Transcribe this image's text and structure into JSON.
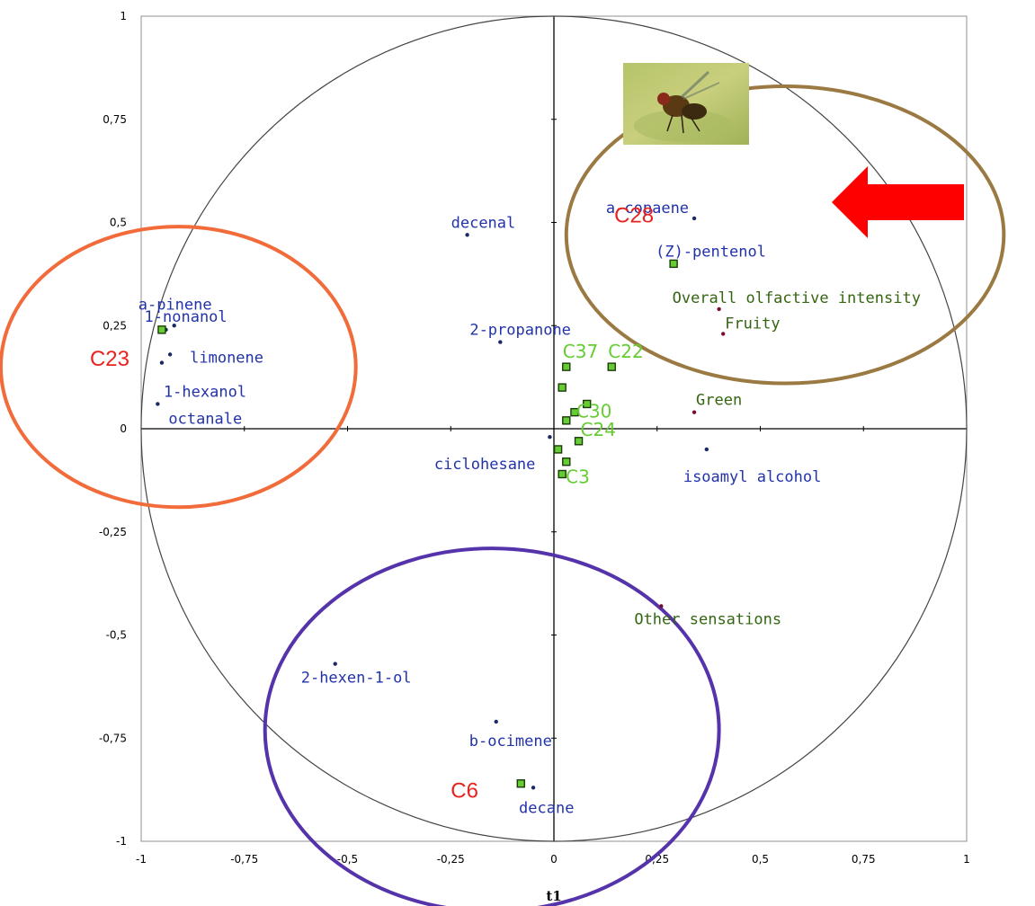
{
  "chart_data": {
    "type": "scatter",
    "xlabel": "t1",
    "xlim": [
      -1,
      1
    ],
    "ylim": [
      -1,
      1
    ],
    "x_ticks": [
      "-1",
      "-0,75",
      "-0,5",
      "-0,25",
      "0",
      "0,25",
      "0,5",
      "0,75",
      "1"
    ],
    "y_ticks": [
      "1",
      "0,75",
      "0,5",
      "0,25",
      "0",
      "-0,25",
      "-0,5",
      "-0,75",
      "-1"
    ],
    "correlation_circle": true,
    "variables_volatile": [
      {
        "name": "a-copaene",
        "x": 0.34,
        "y": 0.51
      },
      {
        "name": "(Z)-pentenol",
        "x": 0.29,
        "y": 0.4
      },
      {
        "name": "decenal",
        "x": -0.21,
        "y": 0.47
      },
      {
        "name": "2-propanone",
        "x": -0.13,
        "y": 0.21
      },
      {
        "name": "a-pinene",
        "x": -0.92,
        "y": 0.25
      },
      {
        "name": "1-nonanol",
        "x": -0.94,
        "y": 0.24
      },
      {
        "name": "limonene",
        "x": -0.93,
        "y": 0.18
      },
      {
        "name": "1-hexanol",
        "x": -0.95,
        "y": 0.16
      },
      {
        "name": "octanale",
        "x": -0.96,
        "y": 0.06
      },
      {
        "name": "ciclohesane",
        "x": -0.01,
        "y": -0.02
      },
      {
        "name": "isoamyl alcohol",
        "x": 0.37,
        "y": -0.05
      },
      {
        "name": "2-hexen-1-ol",
        "x": -0.53,
        "y": -0.57
      },
      {
        "name": "b-ocimene",
        "x": -0.14,
        "y": -0.71
      },
      {
        "name": "decane",
        "x": -0.05,
        "y": -0.87
      }
    ],
    "variables_sensory": [
      {
        "name": "Overall olfactive intensity",
        "x": 0.4,
        "y": 0.29
      },
      {
        "name": "Fruity",
        "x": 0.41,
        "y": 0.23
      },
      {
        "name": "Green",
        "x": 0.34,
        "y": 0.04
      },
      {
        "name": "Other sensations",
        "x": 0.26,
        "y": -0.43
      }
    ],
    "observations": [
      {
        "label": "C37",
        "x": 0.03,
        "y": 0.15
      },
      {
        "label": "C22",
        "x": 0.14,
        "y": 0.15
      },
      {
        "label": "C30",
        "x": 0.05,
        "y": 0.04
      },
      {
        "label": "C24",
        "x": 0.06,
        "y": -0.03
      },
      {
        "label": "C3",
        "x": 0.02,
        "y": -0.11
      },
      {
        "label": "",
        "x": 0.02,
        "y": 0.1
      },
      {
        "label": "",
        "x": 0.08,
        "y": 0.06
      },
      {
        "label": "",
        "x": 0.03,
        "y": 0.02
      },
      {
        "label": "",
        "x": 0.01,
        "y": -0.05
      },
      {
        "label": "",
        "x": 0.03,
        "y": -0.08
      }
    ],
    "highlighted": [
      {
        "label": "C28",
        "x": 0.29,
        "y": 0.4
      },
      {
        "label": "C23",
        "x": -0.95,
        "y": 0.24
      },
      {
        "label": "C6",
        "x": -0.08,
        "y": -0.86
      }
    ],
    "annotations": [
      {
        "shape": "ellipse",
        "color": "#f26b3a",
        "group": "left"
      },
      {
        "shape": "ellipse",
        "color": "#9a7a42",
        "group": "upper-right"
      },
      {
        "shape": "ellipse",
        "color": "#5533aa",
        "group": "bottom"
      },
      {
        "shape": "arrow",
        "color": "#ff0000",
        "direction": "left"
      },
      {
        "shape": "photo",
        "subject": "fruit-fly"
      }
    ],
    "colors": {
      "volatile": "#2233aa",
      "sensory": "#336611",
      "observation": "#66cc33",
      "highlight": "#e8231f",
      "point_volatile": "#1a2a66",
      "point_sensory": "#7a1030"
    }
  }
}
